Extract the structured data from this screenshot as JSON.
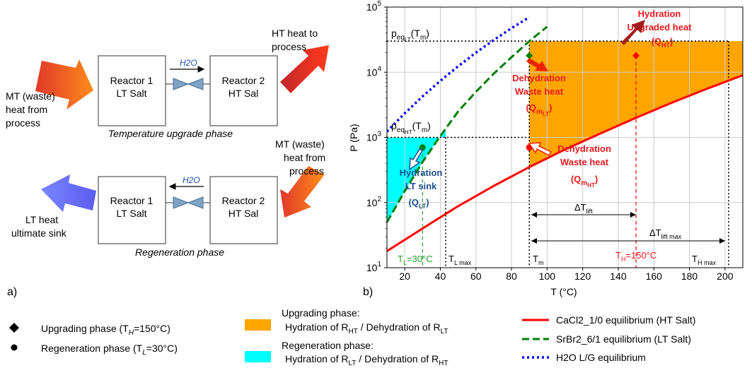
{
  "diagram": {
    "upgrade_phase": {
      "caption": "Temperature upgrade phase",
      "reactor1": [
        "Reactor 1",
        "LT Salt"
      ],
      "reactor2": [
        "Reactor 2",
        "HT Sal"
      ],
      "flow_label": "H2O",
      "input_label": [
        "MT (waste)",
        "heat from",
        "process"
      ],
      "output_label": [
        "HT heat to",
        "process"
      ]
    },
    "regen_phase": {
      "caption": "Regeneration phase",
      "reactor1": [
        "Reactor 1",
        "LT Salt"
      ],
      "reactor2": [
        "Reactor 2",
        "HT Sal"
      ],
      "flow_label": "H2O",
      "input_label": [
        "MT (waste)",
        "heat from",
        "process"
      ],
      "output_label": [
        "LT heat",
        "ultimate sink"
      ]
    },
    "panel_a_label": "a)",
    "panel_b_label": "b)"
  },
  "chart_data": {
    "type": "line",
    "xlabel": "T (°C)",
    "ylabel": "P (Pa)",
    "x_ticks": [
      20,
      40,
      60,
      80,
      100,
      120,
      140,
      160,
      180,
      200
    ],
    "y_ticks": [
      "10^1",
      "10^2",
      "10^3",
      "10^4",
      "10^5"
    ],
    "xlim": [
      10,
      210
    ],
    "ylim": [
      10,
      100000
    ],
    "y_scale": "log",
    "grid": true,
    "colors": {
      "ht_salt": "#ff0000",
      "lt_salt": "#008000",
      "water": "#0000ff",
      "upgrade_fill": "#ffa500",
      "regen_fill": "#00ffff"
    },
    "series": [
      {
        "name": "CaCl2_1/0 equilibrium (HT Salt)",
        "style": "solid",
        "x": [
          10,
          30,
          50,
          70,
          90,
          110,
          130,
          150,
          170,
          190,
          210
        ],
        "y": [
          18,
          40,
          88,
          180,
          350,
          650,
          1150,
          2000,
          3400,
          5600,
          9000
        ]
      },
      {
        "name": "SrBr2_6/1 equilibrium (LT Salt)",
        "style": "dashed",
        "x": [
          10,
          20,
          30,
          40,
          50,
          60,
          70,
          80,
          90,
          100
        ],
        "y": [
          50,
          150,
          420,
          1050,
          2500,
          5000,
          9500,
          17000,
          30000,
          50000
        ]
      },
      {
        "name": "H2O L/G equilibrium",
        "style": "dotted",
        "x": [
          10,
          20,
          30,
          40,
          50,
          60,
          70,
          80,
          90
        ],
        "y": [
          1230,
          2340,
          4250,
          7380,
          12350,
          19950,
          31200,
          47400,
          70100
        ]
      }
    ],
    "markers": {
      "upgrade_diamond": {
        "x": 90,
        "y": 18000
      },
      "upgrade_ht": {
        "x": 150,
        "y": 18000
      },
      "regen_lt": {
        "x": 30,
        "y": 700
      },
      "regen_ht": {
        "x": 90,
        "y": 700
      }
    },
    "annotations": {
      "peq_lt": "p",
      "peq_lt_sub": "eq",
      "peq_lt_subsub": "LT",
      "peq_lt_arg": "(T",
      "peq_lt_arg_sub": "m",
      "peq_lt_close": ")",
      "peq_ht": "p",
      "peq_ht_sub": "eq",
      "peq_ht_subsub": "HT",
      "peq_ht_arg": "(T",
      "peq_ht_arg_sub": "m",
      "peq_ht_close": ")",
      "hydration_upgraded": [
        "Hydration",
        "Upgraded heat"
      ],
      "q_ht": "(Q",
      "q_ht_sub": "HT",
      "q_ht_close": ")",
      "dehydration_lt": [
        "Dehydration",
        "Waste heat"
      ],
      "q_mlt": "(Q",
      "q_mlt_sub": "m",
      "q_mlt_subsub": "LT",
      "q_mlt_close": ")",
      "dehydration_ht": [
        "Dehydration",
        "Waste heat"
      ],
      "q_mht": "(Q",
      "q_mht_sub": "m",
      "q_mht_subsub": "HT",
      "q_mht_close": ")",
      "hydration_sink": [
        "Hydration",
        "LT sink"
      ],
      "q_lt": "(Q",
      "q_lt_sub": "LT",
      "q_lt_close": ")",
      "delta_lift": "ΔT",
      "delta_lift_sub": "lift",
      "delta_lift_max": "ΔT",
      "delta_lift_max_sub": "lift max",
      "tl_label": "T",
      "tl_sub": "L",
      "tl_value": "=30°C",
      "tlmax": "T",
      "tlmax_sub": "L max",
      "tm": "T",
      "tm_sub": "m",
      "th_label": "T",
      "th_sub": "H",
      "th_value": "=150°C",
      "thmax": "T",
      "thmax_sub": "H max"
    }
  },
  "legend": {
    "markers": [
      {
        "pre": "Upgrading phase (T",
        "sub": "H",
        "post": "=150°C)"
      },
      {
        "pre": "Regeneration phase (T",
        "sub": "L",
        "post": "=30°C)"
      }
    ],
    "fills": [
      {
        "line1": "Upgrading phase:",
        "pre": "Hydration of R",
        "sub1": "HT",
        "mid": " / Dehydration of R",
        "sub2": "LT"
      },
      {
        "line1": "Regeneration phase:",
        "pre": "Hydration of R",
        "sub1": "LT",
        "mid": " / Dehydration of R",
        "sub2": "HT"
      }
    ],
    "lines": [
      "CaCl2_1/0 equilibrium (HT Salt)",
      "SrBr2_6/1 equilibrium (LT Salt)",
      "H2O L/G equilibrium"
    ]
  }
}
